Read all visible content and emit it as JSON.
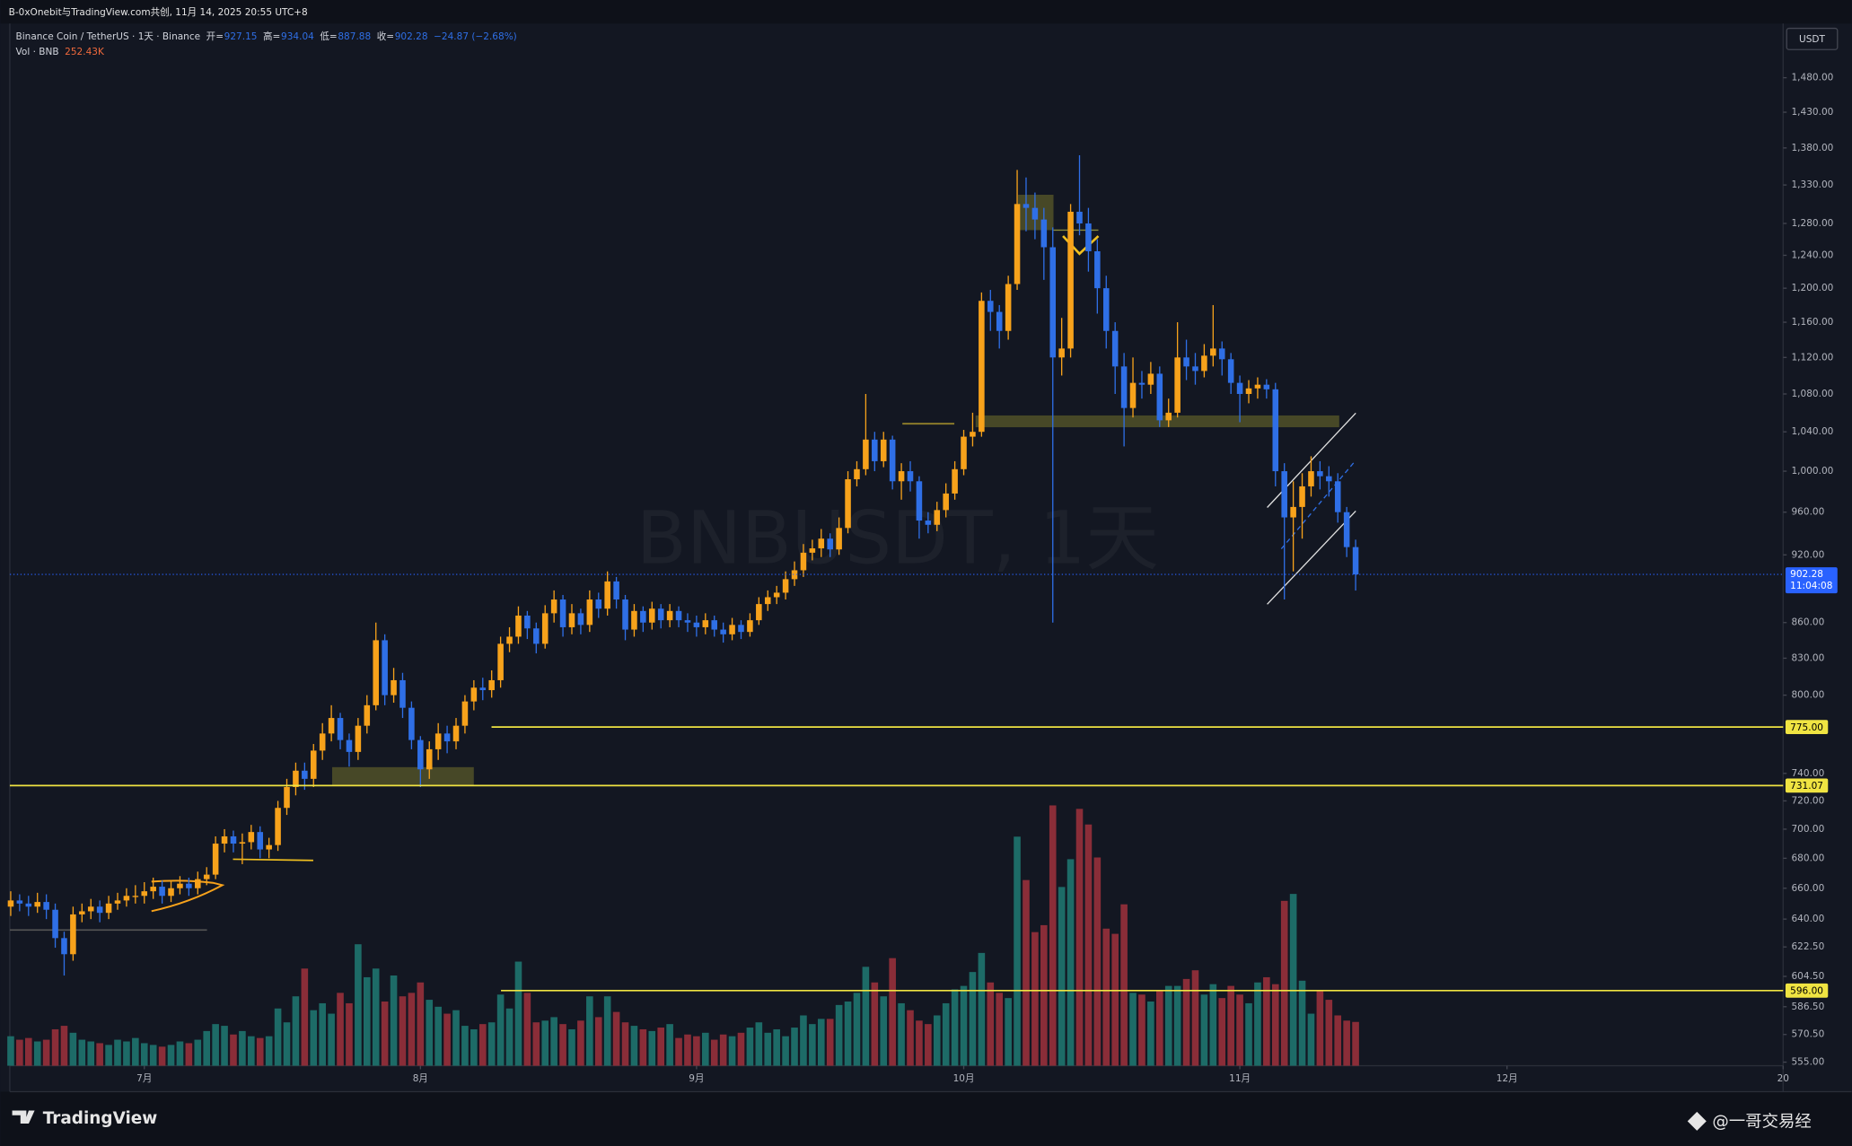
{
  "header": "B-0xOnebit与TradingView.com共创, 11月 14, 2025 20:55 UTC+8",
  "footer": {
    "brand": "TradingView",
    "watermark": "@一哥交易经"
  },
  "chart_data": {
    "type": "candlestick",
    "symbol_title": "Binance Coin / TetherUS · 1天 · Binance",
    "legend": [
      {
        "label": "开=",
        "value": "927.15"
      },
      {
        "label": "高=",
        "value": "934.04"
      },
      {
        "label": "低=",
        "value": "887.88"
      },
      {
        "label": "收=",
        "value": "902.28"
      }
    ],
    "change": "−24.87 (−2.68%)",
    "volume_title": "Vol · BNB",
    "volume_label": "252.43K",
    "watermark": "BNBUSDT, 1天",
    "currency": "USDT",
    "open": [
      648,
      652,
      650,
      648,
      651,
      646,
      628,
      618,
      643,
      645,
      648,
      644,
      650,
      652,
      655,
      655,
      658,
      661,
      655,
      660,
      663,
      660,
      666,
      669,
      690,
      695,
      690,
      691,
      698,
      686,
      689,
      715,
      730,
      742,
      736,
      757,
      770,
      782,
      765,
      756,
      776,
      792,
      845,
      800,
      812,
      790,
      765,
      743,
      758,
      770,
      764,
      776,
      795,
      806,
      804,
      812,
      842,
      848,
      866,
      855,
      842,
      868,
      880,
      856,
      868,
      858,
      880,
      872,
      896,
      880,
      854,
      870,
      860,
      872,
      862,
      870,
      862,
      860,
      856,
      862,
      854,
      850,
      858,
      852,
      862,
      876,
      882,
      886,
      898,
      906,
      922,
      926,
      935,
      925,
      945,
      992,
      1002,
      1032,
      1010,
      1032,
      990,
      1000,
      990,
      952,
      948,
      962,
      978,
      1002,
      1035,
      1040,
      1185,
      1172,
      1150,
      1205,
      1305,
      1300,
      1285,
      1250,
      1120,
      1130,
      1295,
      1280,
      1245,
      1200,
      1150,
      1110,
      1065,
      1092,
      1090,
      1102,
      1052,
      1060,
      1120,
      1110,
      1105,
      1122,
      1130,
      1118,
      1092,
      1080,
      1086,
      1090,
      1085,
      1000,
      955,
      965,
      985,
      1000,
      995,
      990,
      960,
      927.15
    ],
    "high": [
      658,
      656,
      655,
      657,
      656,
      650,
      632,
      648,
      650,
      653,
      652,
      655,
      657,
      660,
      662,
      664,
      667,
      665,
      665,
      668,
      667,
      671,
      674,
      695,
      700,
      699,
      697,
      703,
      702,
      694,
      720,
      736,
      748,
      748,
      762,
      778,
      792,
      786,
      770,
      782,
      800,
      860,
      850,
      822,
      818,
      795,
      768,
      764,
      778,
      776,
      782,
      800,
      812,
      814,
      820,
      848,
      856,
      874,
      870,
      860,
      875,
      888,
      884,
      876,
      872,
      888,
      886,
      905,
      900,
      884,
      876,
      874,
      878,
      876,
      876,
      874,
      868,
      866,
      868,
      866,
      860,
      864,
      862,
      868,
      882,
      888,
      892,
      905,
      914,
      930,
      934,
      944,
      940,
      955,
      1000,
      1010,
      1080,
      1040,
      1040,
      1036,
      1008,
      1010,
      995,
      960,
      970,
      988,
      1010,
      1042,
      1060,
      1195,
      1198,
      1180,
      1215,
      1350,
      1340,
      1320,
      1300,
      1275,
      1165,
      1305,
      1370,
      1300,
      1260,
      1215,
      1160,
      1125,
      1120,
      1105,
      1115,
      1110,
      1075,
      1160,
      1140,
      1125,
      1135,
      1180,
      1138,
      1125,
      1100,
      1095,
      1098,
      1096,
      1092,
      1008,
      990,
      998,
      1015,
      1010,
      1005,
      998,
      965,
      934.04
    ],
    "low": [
      642,
      645,
      642,
      644,
      640,
      622,
      605,
      614,
      638,
      640,
      638,
      640,
      646,
      648,
      650,
      650,
      653,
      650,
      651,
      656,
      655,
      656,
      662,
      666,
      684,
      684,
      676,
      686,
      680,
      680,
      685,
      710,
      724,
      728,
      730,
      750,
      764,
      758,
      745,
      750,
      770,
      788,
      792,
      794,
      782,
      758,
      730,
      736,
      750,
      755,
      758,
      770,
      788,
      796,
      798,
      806,
      835,
      842,
      846,
      834,
      838,
      860,
      848,
      850,
      850,
      852,
      864,
      866,
      872,
      845,
      848,
      852,
      854,
      855,
      856,
      856,
      852,
      848,
      850,
      848,
      843,
      845,
      846,
      848,
      858,
      870,
      876,
      880,
      892,
      900,
      915,
      918,
      918,
      920,
      940,
      985,
      996,
      1000,
      1004,
      982,
      972,
      980,
      935,
      940,
      942,
      955,
      972,
      996,
      1025,
      1035,
      1150,
      1130,
      1140,
      1198,
      1270,
      1260,
      1210,
      860,
      1100,
      1120,
      1265,
      1220,
      1170,
      1130,
      1080,
      1025,
      1055,
      1075,
      1080,
      1045,
      1045,
      1055,
      1095,
      1090,
      1098,
      1110,
      1100,
      1080,
      1050,
      1070,
      1075,
      1075,
      985,
      880,
      905,
      935,
      975,
      982,
      975,
      950,
      918,
      887.88
    ],
    "close": [
      652,
      650,
      648,
      651,
      646,
      628,
      618,
      643,
      645,
      648,
      644,
      650,
      652,
      655,
      655,
      658,
      661,
      655,
      660,
      663,
      660,
      666,
      669,
      690,
      695,
      690,
      691,
      698,
      686,
      689,
      715,
      730,
      742,
      736,
      757,
      770,
      782,
      765,
      756,
      776,
      792,
      845,
      800,
      812,
      790,
      765,
      743,
      758,
      770,
      764,
      776,
      795,
      806,
      804,
      812,
      842,
      848,
      866,
      855,
      842,
      868,
      880,
      856,
      868,
      858,
      880,
      872,
      896,
      880,
      854,
      870,
      860,
      872,
      862,
      870,
      862,
      860,
      856,
      862,
      854,
      850,
      858,
      852,
      862,
      876,
      882,
      886,
      898,
      906,
      922,
      926,
      935,
      925,
      945,
      992,
      1002,
      1032,
      1010,
      1032,
      990,
      1000,
      990,
      952,
      948,
      962,
      978,
      1002,
      1035,
      1040,
      1185,
      1172,
      1150,
      1205,
      1305,
      1300,
      1285,
      1250,
      1120,
      1130,
      1295,
      1280,
      1245,
      1200,
      1150,
      1110,
      1065,
      1092,
      1090,
      1102,
      1052,
      1060,
      1120,
      1110,
      1105,
      1122,
      1130,
      1118,
      1092,
      1080,
      1086,
      1090,
      1085,
      1000,
      955,
      965,
      985,
      1000,
      995,
      990,
      960,
      927.15,
      902.28
    ],
    "volume": [
      170,
      150,
      160,
      140,
      150,
      210,
      230,
      190,
      150,
      140,
      130,
      120,
      150,
      140,
      160,
      130,
      120,
      110,
      120,
      140,
      130,
      150,
      200,
      240,
      230,
      180,
      200,
      170,
      160,
      170,
      330,
      250,
      400,
      560,
      320,
      360,
      300,
      420,
      360,
      700,
      510,
      560,
      370,
      520,
      400,
      420,
      480,
      380,
      340,
      300,
      320,
      230,
      210,
      240,
      250,
      410,
      330,
      600,
      420,
      250,
      260,
      280,
      240,
      210,
      260,
      400,
      280,
      400,
      310,
      250,
      230,
      210,
      200,
      220,
      240,
      160,
      180,
      170,
      190,
      150,
      180,
      170,
      190,
      220,
      250,
      190,
      210,
      170,
      220,
      290,
      240,
      270,
      270,
      350,
      370,
      420,
      570,
      480,
      400,
      620,
      360,
      320,
      260,
      240,
      290,
      360,
      440,
      460,
      540,
      650,
      480,
      420,
      390,
      1320,
      1070,
      770,
      810,
      1500,
      1030,
      1190,
      1480,
      1390,
      1200,
      790,
      760,
      930,
      420,
      410,
      370,
      430,
      460,
      460,
      500,
      550,
      410,
      470,
      390,
      460,
      410,
      360,
      480,
      510,
      470,
      950,
      990,
      490,
      300,
      430,
      380,
      290,
      260,
      252.43
    ],
    "volume_lim": [
      0,
      1700
    ],
    "xlim": [
      -0.1,
      199
    ],
    "xticks": [
      {
        "value": 15,
        "label": "7月"
      },
      {
        "value": 46,
        "label": "8月"
      },
      {
        "value": 77,
        "label": "9月"
      },
      {
        "value": 107,
        "label": "10月"
      },
      {
        "value": 138,
        "label": "11月"
      },
      {
        "value": 168,
        "label": "12月"
      },
      {
        "value": 199,
        "label": "20"
      }
    ],
    "ylim": [
      553,
      1562
    ],
    "log_scale": true,
    "yticks": [
      {
        "value": 1480,
        "label": "1,480.00"
      },
      {
        "value": 1430,
        "label": "1,430.00"
      },
      {
        "value": 1380,
        "label": "1,380.00"
      },
      {
        "value": 1330,
        "label": "1,330.00"
      },
      {
        "value": 1280,
        "label": "1,280.00"
      },
      {
        "value": 1240,
        "label": "1,240.00"
      },
      {
        "value": 1200,
        "label": "1,200.00"
      },
      {
        "value": 1160,
        "label": "1,160.00"
      },
      {
        "value": 1120,
        "label": "1,120.00"
      },
      {
        "value": 1080,
        "label": "1,080.00"
      },
      {
        "value": 1040,
        "label": "1,040.00"
      },
      {
        "value": 1000,
        "label": "1,000.00"
      },
      {
        "value": 960,
        "label": "960.00"
      },
      {
        "value": 920,
        "label": "920.00"
      },
      {
        "value": 860,
        "label": "860.00"
      },
      {
        "value": 830,
        "label": "830.00"
      },
      {
        "value": 800,
        "label": "800.00"
      },
      {
        "value": 740,
        "label": "740.00"
      },
      {
        "value": 720,
        "label": "720.00"
      },
      {
        "value": 700,
        "label": "700.00"
      },
      {
        "value": 680,
        "label": "680.00"
      },
      {
        "value": 660,
        "label": "660.00"
      },
      {
        "value": 640,
        "label": "640.00"
      },
      {
        "value": 622.5,
        "label": "622.50"
      },
      {
        "value": 604.5,
        "label": "604.50"
      },
      {
        "value": 586.5,
        "label": "586.50"
      },
      {
        "value": 570.5,
        "label": "570.50"
      },
      {
        "value": 555,
        "label": "555.00"
      }
    ],
    "grid": false,
    "up_color": "#f7a21b",
    "down_color": "#2f6fe6",
    "volume_up_color": "#1d6b67",
    "volume_down_color": "#8a2d38",
    "last_price": {
      "value": 902.28,
      "label": "902.28",
      "countdown": "11:04:08",
      "color": "#2962ff"
    },
    "levels": [
      {
        "value": 775,
        "label": "775.00"
      },
      {
        "value": 731.07,
        "label": "731.07"
      },
      {
        "value": 596,
        "label": "596.00"
      }
    ],
    "level_color": "#f0e442"
  }
}
